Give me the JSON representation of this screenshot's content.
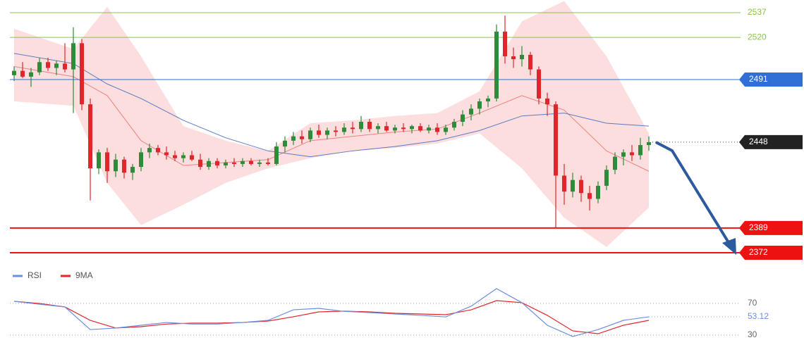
{
  "chart_data": {
    "type": "candlestick",
    "up_color": "#2e8b3a",
    "down_color": "#e0262a",
    "ylim": [
      2365.7,
      2545.7
    ],
    "candles": [
      [
        2494,
        2500,
        2490,
        2497
      ],
      [
        2497,
        2503,
        2492,
        2493
      ],
      [
        2493,
        2499,
        2486,
        2496
      ],
      [
        2496,
        2506,
        2494,
        2503
      ],
      [
        2503,
        2506,
        2497,
        2499
      ],
      [
        2499,
        2504,
        2494,
        2502
      ],
      [
        2502,
        2516,
        2496,
        2498
      ],
      [
        2498,
        2527,
        2468,
        2516
      ],
      [
        2516,
        2519,
        2470,
        2474
      ],
      [
        2474,
        2478,
        2408,
        2430
      ],
      [
        2430,
        2443,
        2426,
        2441
      ],
      [
        2441,
        2444,
        2420,
        2428
      ],
      [
        2428,
        2440,
        2424,
        2436
      ],
      [
        2436,
        2438,
        2423,
        2427
      ],
      [
        2427,
        2433,
        2422,
        2431
      ],
      [
        2431,
        2444,
        2428,
        2441
      ],
      [
        2441,
        2447,
        2437,
        2444
      ],
      [
        2444,
        2446,
        2439,
        2441
      ],
      [
        2441,
        2445,
        2436,
        2439
      ],
      [
        2439,
        2442,
        2435,
        2437
      ],
      [
        2437,
        2441,
        2434,
        2439
      ],
      [
        2439,
        2442,
        2435,
        2436
      ],
      [
        2436,
        2440,
        2429,
        2431
      ],
      [
        2431,
        2437,
        2429,
        2435
      ],
      [
        2435,
        2437,
        2430,
        2432
      ],
      [
        2432,
        2436,
        2430,
        2434
      ],
      [
        2434,
        2437,
        2431,
        2433
      ],
      [
        2433,
        2437,
        2431,
        2435
      ],
      [
        2435,
        2437,
        2432,
        2433
      ],
      [
        2433,
        2436,
        2431,
        2434
      ],
      [
        2434,
        2437,
        2432,
        2433
      ],
      [
        2433,
        2448,
        2432,
        2445
      ],
      [
        2445,
        2452,
        2441,
        2449
      ],
      [
        2449,
        2455,
        2446,
        2452
      ],
      [
        2452,
        2456,
        2447,
        2450
      ],
      [
        2450,
        2458,
        2448,
        2456
      ],
      [
        2456,
        2460,
        2451,
        2453
      ],
      [
        2453,
        2458,
        2450,
        2456
      ],
      [
        2456,
        2459,
        2452,
        2455
      ],
      [
        2455,
        2461,
        2453,
        2458
      ],
      [
        2458,
        2462,
        2454,
        2457
      ],
      [
        2457,
        2466,
        2455,
        2462
      ],
      [
        2462,
        2464,
        2455,
        2457
      ],
      [
        2457,
        2461,
        2454,
        2459
      ],
      [
        2459,
        2462,
        2455,
        2456
      ],
      [
        2456,
        2460,
        2454,
        2458
      ],
      [
        2458,
        2461,
        2455,
        2457
      ],
      [
        2457,
        2460,
        2454,
        2459
      ],
      [
        2459,
        2461,
        2455,
        2456
      ],
      [
        2456,
        2460,
        2454,
        2458
      ],
      [
        2458,
        2461,
        2453,
        2455
      ],
      [
        2455,
        2460,
        2453,
        2458
      ],
      [
        2458,
        2464,
        2456,
        2462
      ],
      [
        2462,
        2470,
        2459,
        2467
      ],
      [
        2467,
        2474,
        2463,
        2471
      ],
      [
        2471,
        2478,
        2467,
        2476
      ],
      [
        2476,
        2480,
        2472,
        2478
      ],
      [
        2478,
        2529,
        2476,
        2524
      ],
      [
        2524,
        2535,
        2502,
        2507
      ],
      [
        2507,
        2513,
        2499,
        2505
      ],
      [
        2505,
        2514,
        2500,
        2508
      ],
      [
        2508,
        2510,
        2494,
        2498
      ],
      [
        2498,
        2500,
        2474,
        2478
      ],
      [
        2478,
        2482,
        2466,
        2474
      ],
      [
        2474,
        2476,
        2389,
        2425
      ],
      [
        2425,
        2433,
        2405,
        2414
      ],
      [
        2414,
        2427,
        2410,
        2422
      ],
      [
        2422,
        2425,
        2407,
        2413
      ],
      [
        2413,
        2418,
        2401,
        2409
      ],
      [
        2409,
        2421,
        2406,
        2418
      ],
      [
        2418,
        2432,
        2415,
        2429
      ],
      [
        2429,
        2441,
        2426,
        2438
      ],
      [
        2438,
        2443,
        2432,
        2441
      ],
      [
        2441,
        2446,
        2435,
        2439
      ],
      [
        2439,
        2451,
        2436,
        2446
      ],
      [
        2446,
        2452,
        2442,
        2448
      ]
    ],
    "bands": {
      "x": [
        0,
        7,
        11,
        15,
        20,
        25,
        30,
        35,
        40,
        45,
        50,
        55,
        60,
        65,
        70,
        75
      ],
      "fill_color": "#fbd3d3",
      "upper": [
        2526,
        2512,
        2541,
        2507,
        2459,
        2449,
        2442,
        2461,
        2463,
        2466,
        2468,
        2483,
        2531,
        2545,
        2507,
        2454
      ],
      "lower": [
        2476,
        2473,
        2420,
        2391,
        2405,
        2420,
        2430,
        2437,
        2442,
        2444,
        2447,
        2454,
        2430,
        2396,
        2376,
        2403
      ],
      "middle": [
        2500,
        2493,
        2480,
        2449,
        2432,
        2434,
        2436,
        2449,
        2452,
        2455,
        2457,
        2468,
        2480,
        2470,
        2442,
        2428
      ],
      "middle_color": "#f08080",
      "ma": [
        2509,
        2502,
        2488,
        2478,
        2463,
        2451,
        2442,
        2438,
        2442,
        2445,
        2449,
        2456,
        2466,
        2468,
        2461,
        2459
      ],
      "ma_color": "#5b7bc0"
    },
    "levels": [
      {
        "value": 2537,
        "color": "#8bc34a",
        "style": "plain"
      },
      {
        "value": 2520,
        "color": "#8bc34a",
        "style": "plain"
      },
      {
        "value": 2491,
        "color": "#2f6fd6",
        "style": "tag"
      },
      {
        "value": 2448,
        "color": "#222222",
        "style": "dotted"
      },
      {
        "value": 2389,
        "color": "#ee1111",
        "style": "bold"
      },
      {
        "value": 2372,
        "color": "#ee1111",
        "style": "bold"
      }
    ],
    "rsi": {
      "ylim": [
        17.6,
        97.6
      ],
      "yticks": [
        70,
        30
      ],
      "x": [
        0,
        3,
        6,
        9,
        12,
        15,
        18,
        21,
        24,
        27,
        30,
        33,
        36,
        39,
        42,
        45,
        48,
        51,
        54,
        57,
        60,
        63,
        66,
        69,
        72,
        75
      ],
      "series": [
        {
          "name": "RSI",
          "color": "#6b8fe0",
          "values": [
            72.7,
            69,
            65.6,
            37,
            39,
            42.5,
            46,
            44,
            44,
            46,
            48.7,
            62,
            63.8,
            60,
            58.5,
            56.7,
            55,
            53,
            66.5,
            88.7,
            71,
            42.5,
            28.3,
            37,
            48.7,
            53.12
          ]
        },
        {
          "name": "9MA",
          "color": "#e0262a",
          "values": [
            72.7,
            70,
            65.6,
            48.7,
            39,
            40.7,
            44,
            45.2,
            45.2,
            46,
            47.8,
            53.2,
            59.4,
            60.3,
            59.4,
            57.6,
            56.7,
            55.8,
            62,
            73.6,
            71,
            55,
            35.4,
            31.8,
            42.5,
            48.7
          ]
        }
      ]
    }
  }
}
